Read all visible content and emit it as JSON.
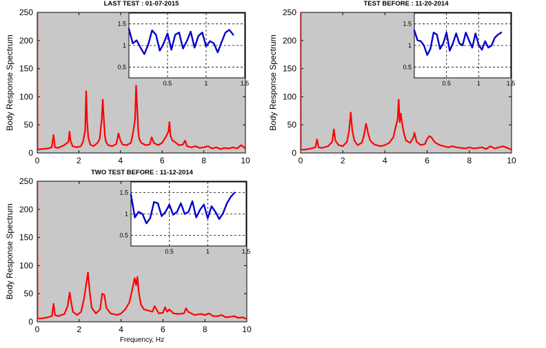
{
  "colors": {
    "plot_bg": "#c8c8c8",
    "spectrum": "#ff0000",
    "inset_line": "#0000cc",
    "inset_bg": "#ffffff",
    "axis": "#000000"
  },
  "xlabel_bottom": "Frequency, Hz",
  "chart_data": [
    {
      "type": "line",
      "title": "LAST TEST : 01-07-2015",
      "ylabel": "Body Response Spectrum",
      "xlabel": "",
      "xlim": [
        0,
        10
      ],
      "ylim": [
        0,
        250
      ],
      "xticks": [
        "0",
        "2",
        "4",
        "6",
        "8",
        "10"
      ],
      "yticks": [
        "0",
        "50",
        "100",
        "150",
        "200",
        "250"
      ],
      "grid": false,
      "series": [
        {
          "x": [
            0,
            0.005,
            0.01,
            0.2,
            0.5,
            0.7,
            0.78,
            0.85,
            1.0,
            1.3,
            1.5,
            1.55,
            1.6,
            1.7,
            1.9,
            2.1,
            2.2,
            2.3,
            2.35,
            2.4,
            2.45,
            2.55,
            2.7,
            2.9,
            3.0,
            3.1,
            3.15,
            3.2,
            3.25,
            3.3,
            3.4,
            3.6,
            3.8,
            3.9,
            4.0,
            4.1,
            4.3,
            4.5,
            4.6,
            4.7,
            4.75,
            4.8,
            4.85,
            4.9,
            5.0,
            5.2,
            5.4,
            5.5,
            5.6,
            5.8,
            6.0,
            6.2,
            6.3,
            6.35,
            6.4,
            6.5,
            6.6,
            6.8,
            7.0,
            7.1,
            7.2,
            7.4,
            7.6,
            7.8,
            8.0,
            8.2,
            8.4,
            8.6,
            8.8,
            9.0,
            9.2,
            9.4,
            9.6,
            9.8,
            10.0
          ],
          "y": [
            250,
            250,
            6,
            7,
            8,
            10,
            32,
            10,
            9,
            14,
            20,
            38,
            22,
            12,
            10,
            12,
            20,
            40,
            110,
            55,
            28,
            15,
            12,
            18,
            25,
            60,
            95,
            60,
            30,
            20,
            14,
            12,
            16,
            35,
            22,
            15,
            14,
            18,
            35,
            60,
            120,
            80,
            40,
            25,
            18,
            14,
            15,
            28,
            18,
            14,
            18,
            30,
            38,
            55,
            30,
            22,
            20,
            14,
            15,
            22,
            12,
            10,
            12,
            9,
            10,
            12,
            8,
            10,
            7,
            9,
            8,
            10,
            8,
            14,
            8
          ]
        }
      ],
      "inset": {
        "type": "line",
        "xlim": [
          0,
          1.5
        ],
        "ylim": [
          0.25,
          1.75
        ],
        "xticks": [
          "0.5",
          "1",
          "1.5"
        ],
        "yticks": [
          "0.5",
          "1",
          "1.5"
        ],
        "grid": true,
        "x": [
          0.0,
          0.05,
          0.1,
          0.15,
          0.2,
          0.25,
          0.3,
          0.35,
          0.4,
          0.45,
          0.5,
          0.55,
          0.6,
          0.65,
          0.7,
          0.75,
          0.8,
          0.85,
          0.9,
          0.95,
          1.0,
          1.05,
          1.1,
          1.15,
          1.2,
          1.25,
          1.3,
          1.35
        ],
        "y": [
          1.38,
          1.05,
          1.12,
          0.95,
          0.8,
          1.02,
          1.35,
          1.25,
          0.88,
          1.05,
          1.28,
          0.9,
          1.25,
          1.3,
          0.93,
          1.1,
          1.32,
          0.95,
          1.22,
          1.3,
          0.98,
          1.1,
          1.05,
          0.84,
          1.08,
          1.3,
          1.36,
          1.25
        ]
      }
    },
    {
      "type": "line",
      "title": "TEST BEFORE : 11-20-2014",
      "ylabel": "Body Response Spectrum",
      "xlabel": "",
      "xlim": [
        0,
        10
      ],
      "ylim": [
        0,
        250
      ],
      "xticks": [
        "0",
        "2",
        "4",
        "6",
        "8",
        "10"
      ],
      "yticks": [
        "0",
        "50",
        "100",
        "150",
        "200",
        "250"
      ],
      "grid": false,
      "series": [
        {
          "x": [
            0,
            0.005,
            0.01,
            0.2,
            0.5,
            0.7,
            0.78,
            0.85,
            1.0,
            1.3,
            1.5,
            1.58,
            1.65,
            1.8,
            2.0,
            2.2,
            2.3,
            2.38,
            2.45,
            2.55,
            2.7,
            2.9,
            3.0,
            3.1,
            3.15,
            3.2,
            3.3,
            3.5,
            3.8,
            4.0,
            4.2,
            4.4,
            4.5,
            4.6,
            4.65,
            4.7,
            4.75,
            4.8,
            4.9,
            5.0,
            5.2,
            5.35,
            5.4,
            5.5,
            5.7,
            5.9,
            6.0,
            6.1,
            6.2,
            6.3,
            6.4,
            6.6,
            6.8,
            7.0,
            7.2,
            7.4,
            7.6,
            7.8,
            8.0,
            8.2,
            8.4,
            8.6,
            8.8,
            9.0,
            9.2,
            9.4,
            9.6,
            9.8,
            10.0
          ],
          "y": [
            250,
            250,
            6,
            6,
            8,
            10,
            24,
            10,
            9,
            12,
            20,
            42,
            22,
            14,
            12,
            20,
            40,
            72,
            40,
            22,
            14,
            18,
            30,
            52,
            45,
            35,
            22,
            15,
            12,
            14,
            18,
            28,
            45,
            60,
            95,
            55,
            70,
            55,
            35,
            22,
            18,
            28,
            36,
            20,
            14,
            16,
            25,
            30,
            28,
            22,
            18,
            14,
            12,
            10,
            12,
            10,
            9,
            8,
            10,
            8,
            9,
            10,
            7,
            12,
            8,
            10,
            12,
            9,
            6
          ]
        }
      ],
      "inset": {
        "type": "line",
        "xlim": [
          0,
          1.5
        ],
        "ylim": [
          0.25,
          1.75
        ],
        "xticks": [
          "0.5",
          "1",
          "1.5"
        ],
        "yticks": [
          "0.5",
          "1",
          "1.5"
        ],
        "grid": true,
        "x": [
          0.0,
          0.05,
          0.1,
          0.15,
          0.2,
          0.25,
          0.3,
          0.35,
          0.4,
          0.45,
          0.5,
          0.55,
          0.6,
          0.65,
          0.7,
          0.75,
          0.8,
          0.85,
          0.9,
          0.95,
          1.0,
          1.05,
          1.1,
          1.15,
          1.2,
          1.25,
          1.3,
          1.35
        ],
        "y": [
          1.35,
          1.12,
          1.1,
          1.0,
          0.78,
          0.92,
          1.3,
          1.25,
          0.92,
          1.05,
          1.3,
          0.88,
          1.05,
          1.28,
          1.05,
          1.0,
          1.3,
          1.12,
          0.95,
          1.28,
          1.02,
          0.9,
          1.1,
          0.95,
          1.0,
          1.18,
          1.25,
          1.3
        ]
      }
    },
    {
      "type": "line",
      "title": "TWO TEST BEFORE : 11-12-2014",
      "ylabel": "Body Response Spectrum",
      "xlabel": "Frequency, Hz",
      "xlim": [
        0,
        10
      ],
      "ylim": [
        0,
        250
      ],
      "xticks": [
        "0",
        "2",
        "4",
        "6",
        "8",
        "10"
      ],
      "yticks": [
        "0",
        "50",
        "100",
        "150",
        "200",
        "250"
      ],
      "grid": false,
      "series": [
        {
          "x": [
            0,
            0.005,
            0.01,
            0.2,
            0.5,
            0.7,
            0.78,
            0.85,
            1.0,
            1.3,
            1.45,
            1.55,
            1.6,
            1.7,
            1.9,
            2.1,
            2.25,
            2.35,
            2.42,
            2.5,
            2.6,
            2.8,
            3.0,
            3.1,
            3.2,
            3.3,
            3.5,
            3.8,
            4.0,
            4.2,
            4.4,
            4.55,
            4.65,
            4.72,
            4.78,
            4.85,
            4.95,
            5.1,
            5.3,
            5.5,
            5.6,
            5.8,
            6.0,
            6.1,
            6.2,
            6.3,
            6.5,
            6.7,
            7.0,
            7.1,
            7.2,
            7.5,
            7.8,
            8.0,
            8.2,
            8.4,
            8.6,
            8.8,
            9.0,
            9.2,
            9.4,
            9.6,
            9.8,
            10.0
          ],
          "y": [
            250,
            250,
            6,
            6,
            8,
            10,
            32,
            12,
            10,
            14,
            28,
            52,
            40,
            18,
            12,
            18,
            45,
            70,
            88,
            55,
            25,
            15,
            22,
            50,
            48,
            25,
            15,
            12,
            15,
            22,
            35,
            60,
            78,
            65,
            80,
            52,
            30,
            22,
            20,
            18,
            28,
            15,
            16,
            26,
            18,
            22,
            15,
            14,
            15,
            24,
            18,
            12,
            14,
            12,
            15,
            10,
            10,
            12,
            8,
            9,
            10,
            7,
            8,
            5
          ]
        }
      ],
      "inset": {
        "type": "line",
        "xlim": [
          0,
          1.5
        ],
        "ylim": [
          0.25,
          1.75
        ],
        "xticks": [
          "0.5",
          "1",
          "1.5"
        ],
        "yticks": [
          "0.5",
          "1",
          "1.5"
        ],
        "grid": true,
        "x": [
          0.0,
          0.05,
          0.1,
          0.15,
          0.2,
          0.25,
          0.3,
          0.35,
          0.4,
          0.45,
          0.5,
          0.55,
          0.6,
          0.65,
          0.7,
          0.75,
          0.8,
          0.85,
          0.9,
          0.95,
          1.0,
          1.05,
          1.1,
          1.15,
          1.2,
          1.25,
          1.3,
          1.35
        ],
        "y": [
          1.45,
          0.92,
          1.05,
          1.0,
          0.78,
          0.9,
          1.28,
          1.25,
          0.95,
          1.05,
          1.22,
          0.98,
          1.05,
          1.25,
          1.0,
          1.05,
          1.3,
          0.92,
          1.1,
          1.22,
          0.9,
          1.18,
          1.05,
          0.88,
          1.02,
          1.25,
          1.4,
          1.5
        ]
      }
    }
  ]
}
